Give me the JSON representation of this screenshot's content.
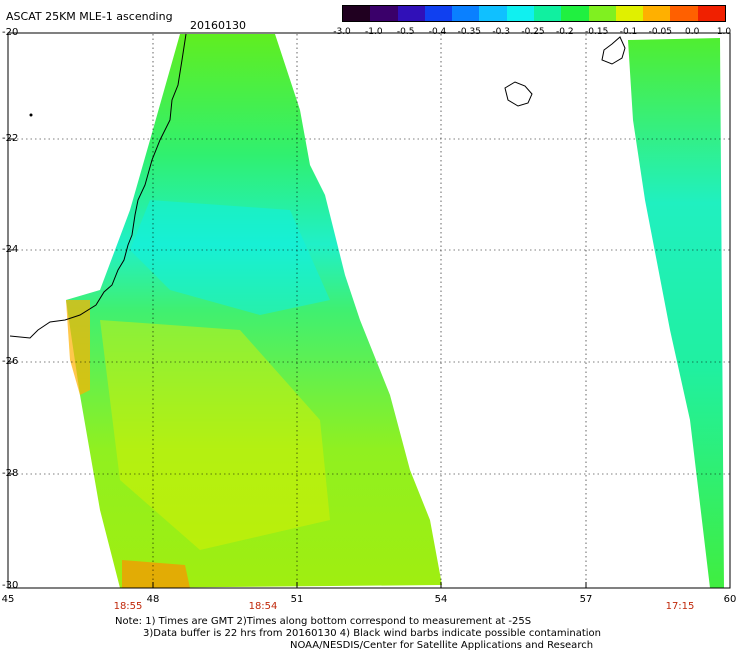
{
  "header": {
    "title": "ASCAT 25KM MLE-1 ascending",
    "date": "20160130"
  },
  "colorbar": {
    "ticks": [
      "-3.0",
      "-1.0",
      "-0.5",
      "-0.4",
      "-0.35",
      "-0.3",
      "-0.25",
      "-0.2",
      "-0.15",
      "-0.1",
      "-0.05",
      "0.0",
      "1.0"
    ],
    "colors": [
      "#200020",
      "#3a006a",
      "#3010b8",
      "#1040f0",
      "#0a80ff",
      "#10c0ff",
      "#10f0f0",
      "#10f0a0",
      "#20f040",
      "#80f020",
      "#e0f000",
      "#ffb000",
      "#ff6000",
      "#f02000"
    ]
  },
  "axes": {
    "y_labels": [
      "-20",
      "-22",
      "-24",
      "-26",
      "-28",
      "-30"
    ],
    "x_labels": [
      "45",
      "48",
      "51",
      "54",
      "57",
      "60"
    ]
  },
  "times": [
    "18:55",
    "18:54",
    "17:15"
  ],
  "notes": {
    "line1": "Note: 1) Times are GMT 2)Times along bottom correspond to measurement at -25S",
    "line2": "3)Data buffer is 22 hrs from 20160130 4) Black wind barbs indicate possible contamination",
    "line3": "NOAA/NESDIS/Center for Satellite Applications and Research"
  }
}
